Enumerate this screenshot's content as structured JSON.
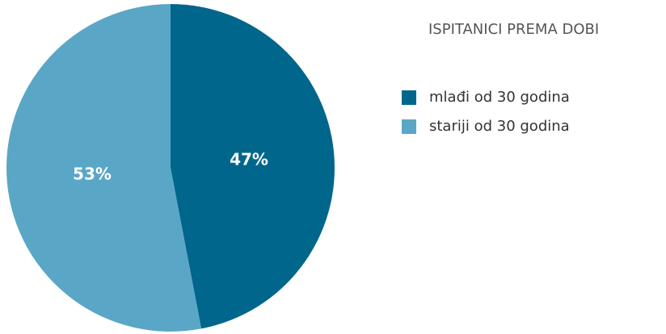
{
  "chart_data": {
    "type": "pie",
    "title": "ISPITANICI PREMA DOBI",
    "categories": [
      "mlađi od 30 godina",
      "stariji od 30 godina"
    ],
    "values": [
      47,
      53
    ],
    "value_labels": [
      "47%",
      "53%"
    ],
    "colors": [
      "#00668c",
      "#5aa6c6"
    ]
  }
}
